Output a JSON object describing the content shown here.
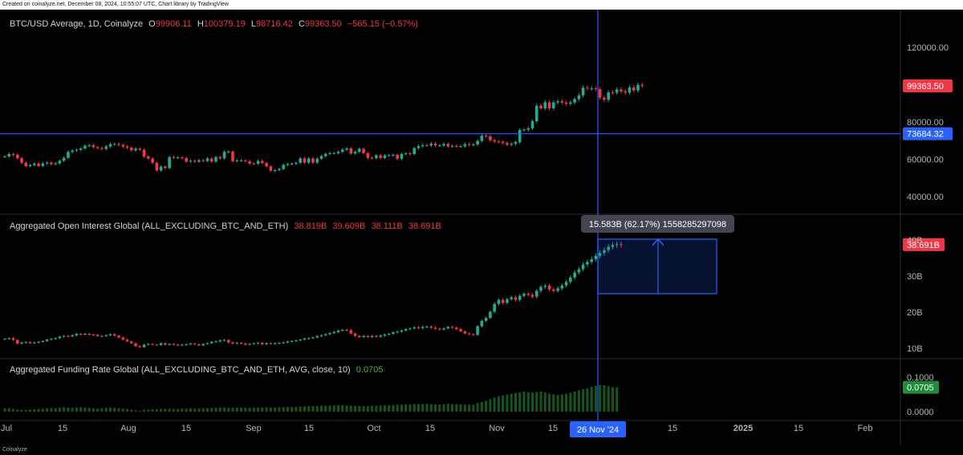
{
  "header": {
    "credit": "Created on coinalyze.net, December 08, 2024, 10:55:07 UTC, Chart library by TradingView"
  },
  "footer": {
    "brand": "Coinalyze"
  },
  "colors": {
    "up": "#22ab94",
    "down": "#f23645",
    "crosshair": "#2962ff",
    "grid": "#2a2e39",
    "volume": "#1b5e20"
  },
  "panes": {
    "price": {
      "symbol": "BTC/USD Average, 1D, Coinalyze",
      "o_label": "O",
      "o": "99906.11",
      "h_label": "H",
      "h": "100379.19",
      "l_label": "L",
      "l": "98716.42",
      "c_label": "C",
      "c": "99363.50",
      "change": "−565.15 (−0.57%)",
      "last_price_label": "99363.50",
      "crosshair_label": "73684.32",
      "ticks": [
        "120000.00",
        "80000.00",
        "60000.00",
        "40000.00"
      ]
    },
    "oi": {
      "title": "Aggregated Open Interest Global (ALL_EXCLUDING_BTC_AND_ETH)",
      "o": "38.819B",
      "h": "39.609B",
      "l": "38.111B",
      "c": "38.691B",
      "last_label": "38.691B",
      "measure_label": "15.583B (62.17%) 1558285297098",
      "ticks": [
        "40B",
        "30B",
        "20B",
        "10B"
      ]
    },
    "funding": {
      "title": "Aggregated Funding Rate Global (ALL_EXCLUDING_BTC_AND_ETH, AVG, close, 10)",
      "value": "0.0705",
      "last_label": "0.0705",
      "ticks": [
        "0.1000",
        "0.0000"
      ]
    }
  },
  "time_axis": {
    "labels": [
      "Jul",
      "15",
      "Aug",
      "15",
      "Sep",
      "15",
      "Oct",
      "15",
      "Nov",
      "15",
      "15",
      "2025",
      "15",
      "Feb"
    ],
    "crosshair_label": "26 Nov '24"
  },
  "chart_data": [
    {
      "type": "candlestick",
      "title": "BTC/USD Average, 1D, Coinalyze",
      "x_start": "2024-06-29",
      "x_end": "2024-12-08",
      "ylim": [
        28000,
        135000
      ],
      "close": [
        61500,
        62800,
        62400,
        60600,
        58100,
        56300,
        56900,
        57700,
        56400,
        57800,
        58200,
        57400,
        57800,
        59200,
        60800,
        64000,
        64700,
        65100,
        65800,
        67300,
        67500,
        66500,
        66000,
        65500,
        66900,
        68100,
        68200,
        67700,
        66800,
        66200,
        64800,
        65700,
        65100,
        61500,
        60400,
        58100,
        54000,
        56100,
        55300,
        61200,
        60900,
        61000,
        60600,
        58800,
        59200,
        58700,
        59500,
        59100,
        60400,
        58800,
        61200,
        60500,
        64000,
        64100,
        59000,
        59400,
        59400,
        59000,
        57700,
        57600,
        59100,
        58000,
        56200,
        53900,
        54200,
        54800,
        57000,
        57500,
        57600,
        58100,
        60500,
        58200,
        60400,
        58200,
        60300,
        61700,
        62900,
        63300,
        63300,
        64000,
        65200,
        65800,
        63100,
        64000,
        65600,
        63300,
        60800,
        60600,
        62100,
        60700,
        62100,
        62200,
        62400,
        60300,
        62800,
        63200,
        62800,
        66000,
        67000,
        67600,
        67400,
        68400,
        67400,
        67400,
        68200,
        66900,
        67200,
        67000,
        67000,
        68100,
        67700,
        67900,
        69900,
        72700,
        72300,
        70200,
        69500,
        69400,
        68800,
        67800,
        68300,
        69200,
        75700,
        75900,
        76600,
        80400,
        88700,
        87300,
        90600,
        87300,
        90500,
        91100,
        90400,
        89800,
        90500,
        92300,
        94300,
        98400,
        98000,
        98000,
        97600,
        93000,
        91900,
        95900,
        95700,
        97400,
        96400,
        95800,
        98500,
        96900,
        99900,
        99363
      ],
      "note": "approximate daily closes"
    },
    {
      "type": "candlestick",
      "title": "Aggregated Open Interest Global (ALL_EXCLUDING_BTC_AND_ETH)",
      "unit": "B",
      "ylim": [
        6,
        46
      ],
      "close": [
        12.6,
        12.8,
        12.3,
        11.3,
        11.6,
        11.7,
        11.4,
        11.6,
        11.8,
        12.0,
        12.4,
        12.6,
        12.8,
        13.2,
        13.4,
        13.3,
        13.6,
        14.0,
        13.9,
        14.0,
        13.8,
        13.7,
        13.4,
        13.4,
        13.6,
        13.9,
        13.5,
        13.0,
        12.4,
        11.9,
        11.4,
        10.6,
        10.3,
        11.0,
        11.2,
        11.0,
        10.9,
        11.4,
        11.0,
        11.2,
        11.0,
        10.8,
        11.0,
        11.1,
        11.3,
        11.1,
        10.8,
        11.2,
        11.4,
        11.8,
        11.9,
        12.2,
        12.3,
        11.6,
        11.3,
        11.5,
        11.3,
        11.0,
        11.2,
        11.4,
        11.5,
        11.1,
        11.4,
        11.2,
        11.4,
        11.5,
        11.6,
        11.9,
        12.0,
        12.2,
        12.4,
        12.7,
        12.8,
        13.0,
        13.4,
        13.6,
        13.9,
        14.2,
        14.5,
        14.9,
        15.1,
        15.0,
        14.1,
        13.4,
        13.1,
        13.4,
        13.1,
        13.4,
        13.2,
        13.5,
        13.8,
        14.0,
        14.4,
        14.6,
        14.9,
        15.3,
        15.5,
        15.8,
        15.6,
        15.9,
        16.0,
        15.7,
        15.4,
        15.2,
        15.5,
        15.9,
        15.7,
        15.3,
        14.7,
        14.1,
        13.9,
        13.7,
        16.1,
        17.6,
        18.4,
        20.1,
        22.3,
        23.4,
        22.6,
        23.6,
        24.1,
        23.4,
        24.5,
        25.1,
        24.8,
        24.3,
        25.9,
        27.0,
        27.3,
        26.3,
        25.9,
        26.6,
        27.4,
        28.4,
        29.6,
        31.0,
        31.9,
        33.2,
        33.9,
        34.7,
        35.6,
        36.4,
        37.2,
        38.1,
        38.6,
        38.819,
        38.691
      ],
      "note": "approximate daily closes"
    },
    {
      "type": "bar",
      "title": "Aggregated Funding Rate Global (ALL_EXCLUDING_BTC_AND_ETH, AVG, close, 10)",
      "ylim": [
        -0.01,
        0.125
      ],
      "values": [
        0.01,
        0.01,
        0.008,
        0.006,
        0.005,
        0.005,
        0.006,
        0.007,
        0.008,
        0.009,
        0.01,
        0.011,
        0.01,
        0.012,
        0.013,
        0.012,
        0.011,
        0.012,
        0.013,
        0.012,
        0.011,
        0.01,
        0.009,
        0.01,
        0.011,
        0.012,
        0.011,
        0.01,
        0.009,
        0.008,
        0.006,
        0.004,
        0.003,
        0.005,
        0.006,
        0.007,
        0.007,
        0.008,
        0.008,
        0.009,
        0.008,
        0.008,
        0.009,
        0.009,
        0.01,
        0.009,
        0.009,
        0.01,
        0.01,
        0.011,
        0.011,
        0.012,
        0.012,
        0.011,
        0.011,
        0.012,
        0.012,
        0.011,
        0.011,
        0.012,
        0.012,
        0.012,
        0.013,
        0.012,
        0.012,
        0.013,
        0.013,
        0.014,
        0.014,
        0.014,
        0.015,
        0.015,
        0.016,
        0.016,
        0.016,
        0.017,
        0.017,
        0.018,
        0.018,
        0.019,
        0.019,
        0.018,
        0.017,
        0.016,
        0.016,
        0.016,
        0.016,
        0.017,
        0.017,
        0.018,
        0.018,
        0.019,
        0.019,
        0.02,
        0.02,
        0.021,
        0.021,
        0.022,
        0.022,
        0.022,
        0.023,
        0.022,
        0.021,
        0.021,
        0.022,
        0.023,
        0.022,
        0.022,
        0.021,
        0.02,
        0.02,
        0.02,
        0.025,
        0.028,
        0.032,
        0.036,
        0.041,
        0.045,
        0.047,
        0.05,
        0.052,
        0.054,
        0.056,
        0.058,
        0.056,
        0.055,
        0.057,
        0.058,
        0.056,
        0.052,
        0.05,
        0.048,
        0.05,
        0.052,
        0.055,
        0.058,
        0.062,
        0.065,
        0.068,
        0.072,
        0.075,
        0.078,
        0.077,
        0.074,
        0.071,
        0.0705
      ],
      "note": "approximate daily values"
    }
  ]
}
